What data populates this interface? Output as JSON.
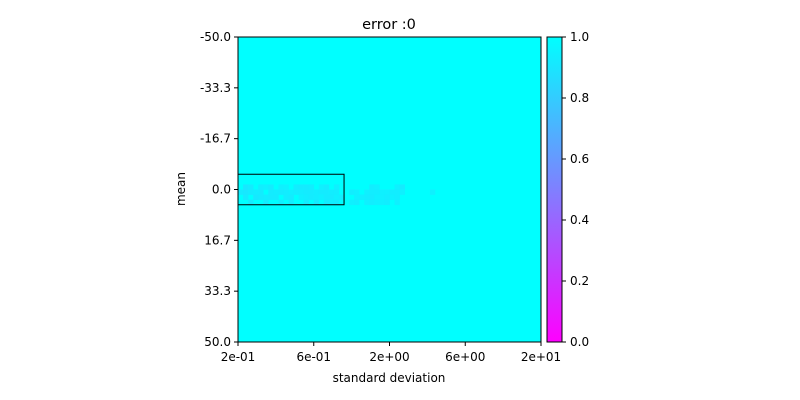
{
  "chart_data": {
    "type": "heatmap",
    "title": "error :0",
    "xlabel": "standard deviation",
    "ylabel": "mean",
    "x_tick_labels": [
      "2e-01",
      "6e-01",
      "2e+00",
      "6e+00",
      "2e+01"
    ],
    "y_tick_labels": [
      "-50.0",
      "-33.3",
      "-16.7",
      "0.0",
      "16.7",
      "33.3",
      "50.0"
    ],
    "y_range": [
      -50,
      50
    ],
    "x_scale": "log",
    "colormap": "cool",
    "colorbar": {
      "range": [
        0.0,
        1.0
      ],
      "tick_labels": [
        "0.0",
        "0.2",
        "0.4",
        "0.6",
        "0.8",
        "1.0"
      ],
      "color_low": "#ff00ff",
      "color_high": "#00ffff"
    },
    "background_value": 1.0,
    "grid": {
      "columns": 60,
      "rows": 60,
      "cells": [
        [
          29,
          1,
          0.91
        ],
        [
          29,
          2,
          0.92
        ],
        [
          29,
          4,
          0.93
        ],
        [
          29,
          5,
          0.94
        ],
        [
          29,
          6,
          0.92
        ],
        [
          29,
          8,
          0.94
        ],
        [
          29,
          9,
          0.95
        ],
        [
          29,
          11,
          0.93
        ],
        [
          29,
          12,
          0.92
        ],
        [
          29,
          13,
          0.92
        ],
        [
          29,
          14,
          0.93
        ],
        [
          29,
          16,
          0.94
        ],
        [
          29,
          17,
          0.92
        ],
        [
          29,
          19,
          0.94
        ],
        [
          29,
          26,
          0.93
        ],
        [
          29,
          27,
          0.94
        ],
        [
          29,
          31,
          0.94
        ],
        [
          29,
          32,
          0.92
        ],
        [
          30,
          0,
          0.92
        ],
        [
          30,
          1,
          0.91
        ],
        [
          30,
          2,
          0.92
        ],
        [
          30,
          3,
          0.93
        ],
        [
          30,
          4,
          0.92
        ],
        [
          30,
          6,
          0.92
        ],
        [
          30,
          7,
          0.93
        ],
        [
          30,
          8,
          0.92
        ],
        [
          30,
          9,
          0.93
        ],
        [
          30,
          10,
          0.94
        ],
        [
          30,
          11,
          0.93
        ],
        [
          30,
          12,
          0.93
        ],
        [
          30,
          13,
          0.92
        ],
        [
          30,
          14,
          0.92
        ],
        [
          30,
          15,
          0.93
        ],
        [
          30,
          16,
          0.92
        ],
        [
          30,
          17,
          0.92
        ],
        [
          30,
          18,
          0.93
        ],
        [
          30,
          19,
          0.93
        ],
        [
          30,
          22,
          0.93
        ],
        [
          30,
          23,
          0.94
        ],
        [
          30,
          25,
          0.94
        ],
        [
          30,
          26,
          0.93
        ],
        [
          30,
          27,
          0.93
        ],
        [
          30,
          28,
          0.94
        ],
        [
          30,
          29,
          0.94
        ],
        [
          30,
          30,
          0.93
        ],
        [
          30,
          31,
          0.93
        ],
        [
          30,
          32,
          0.94
        ],
        [
          30,
          38,
          0.94
        ],
        [
          31,
          1,
          0.92
        ],
        [
          31,
          3,
          0.91
        ],
        [
          31,
          4,
          0.92
        ],
        [
          31,
          5,
          0.93
        ],
        [
          31,
          6,
          0.92
        ],
        [
          31,
          7,
          0.92
        ],
        [
          31,
          9,
          0.93
        ],
        [
          31,
          10,
          0.92
        ],
        [
          31,
          12,
          0.94
        ],
        [
          31,
          13,
          0.93
        ],
        [
          31,
          14,
          0.92
        ],
        [
          31,
          15,
          0.93
        ],
        [
          31,
          16,
          0.94
        ],
        [
          31,
          17,
          0.92
        ],
        [
          31,
          18,
          0.92
        ],
        [
          31,
          19,
          0.94
        ],
        [
          31,
          20,
          0.93
        ],
        [
          31,
          23,
          0.94
        ],
        [
          31,
          24,
          0.94
        ],
        [
          31,
          25,
          0.93
        ],
        [
          31,
          26,
          0.92
        ],
        [
          31,
          27,
          0.94
        ],
        [
          31,
          28,
          0.94
        ],
        [
          31,
          29,
          0.93
        ],
        [
          31,
          30,
          0.94
        ],
        [
          31,
          31,
          0.93
        ],
        [
          32,
          2,
          0.92
        ],
        [
          32,
          5,
          0.93
        ],
        [
          32,
          8,
          0.94
        ],
        [
          32,
          10,
          0.93
        ],
        [
          32,
          13,
          0.93
        ],
        [
          32,
          15,
          0.92
        ],
        [
          32,
          17,
          0.93
        ],
        [
          32,
          18,
          0.94
        ],
        [
          32,
          19,
          0.93
        ],
        [
          32,
          22,
          0.94
        ],
        [
          32,
          23,
          0.93
        ],
        [
          32,
          25,
          0.94
        ],
        [
          32,
          26,
          0.93
        ],
        [
          32,
          27,
          0.94
        ],
        [
          32,
          28,
          0.94
        ],
        [
          32,
          29,
          0.93
        ],
        [
          32,
          31,
          0.94
        ]
      ]
    },
    "highlight_box": {
      "row_start": 27,
      "row_end": 32,
      "col_start": 0,
      "col_end": 20
    }
  }
}
